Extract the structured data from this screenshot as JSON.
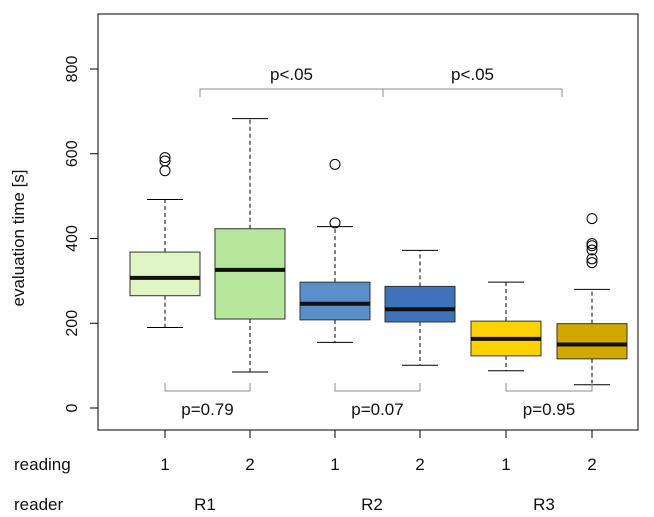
{
  "chart_data": {
    "type": "boxplot",
    "ylabel": "evaluation time [s]",
    "ylim": [
      -60,
      920
    ],
    "yticks": [
      0,
      200,
      400,
      600,
      800
    ],
    "colors": {
      "axis": "#000000",
      "bracket": "#8c8c8c",
      "median": "#111111",
      "whisker": "#000000"
    },
    "row_labels": {
      "reading": "reading",
      "reader": "reader"
    },
    "boxes": [
      {
        "reader": "R1",
        "reading": "1",
        "color": "#e0f5c6",
        "whisker_low": 190,
        "q1": 265,
        "median": 307,
        "q3": 368,
        "whisker_high": 492,
        "outliers": [
          560,
          583,
          591
        ]
      },
      {
        "reader": "R1",
        "reading": "2",
        "color": "#b6e79c",
        "whisker_low": 85,
        "q1": 210,
        "median": 326,
        "q3": 423,
        "whisker_high": 683,
        "outliers": []
      },
      {
        "reader": "R2",
        "reading": "1",
        "color": "#5b8fcc",
        "whisker_low": 155,
        "q1": 208,
        "median": 246,
        "q3": 297,
        "whisker_high": 428,
        "outliers": [
          437,
          575
        ]
      },
      {
        "reader": "R2",
        "reading": "2",
        "color": "#3e72ba",
        "whisker_low": 101,
        "q1": 203,
        "median": 233,
        "q3": 287,
        "whisker_high": 372,
        "outliers": []
      },
      {
        "reader": "R3",
        "reading": "1",
        "color": "#fcd200",
        "whisker_low": 88,
        "q1": 123,
        "median": 163,
        "q3": 205,
        "whisker_high": 297,
        "outliers": []
      },
      {
        "reader": "R3",
        "reading": "2",
        "color": "#d1a800",
        "whisker_low": 55,
        "q1": 116,
        "median": 150,
        "q3": 199,
        "whisker_high": 280,
        "outliers": [
          343,
          352,
          373,
          383,
          388,
          447
        ]
      }
    ],
    "readers": [
      "R1",
      "R2",
      "R3"
    ],
    "annotations": {
      "within_reader": [
        "p=0.79",
        "p=0.07",
        "p=0.95"
      ],
      "between_reader": [
        "p<.05",
        "p<.05"
      ]
    }
  }
}
